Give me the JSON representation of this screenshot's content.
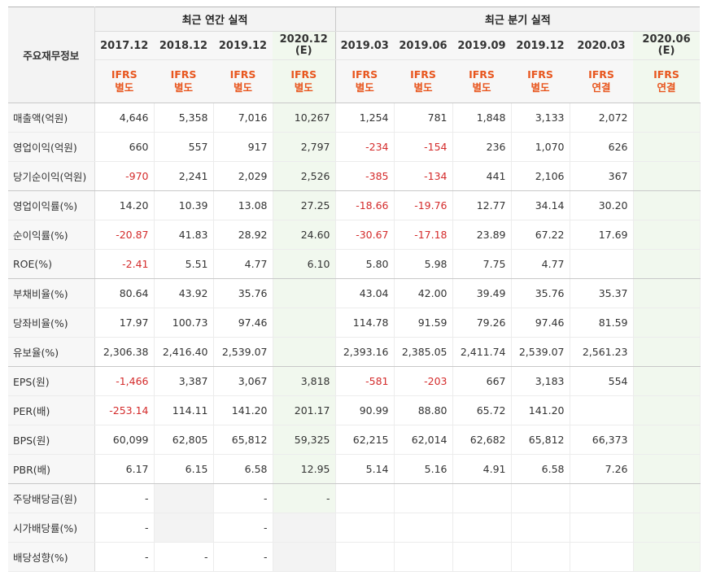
{
  "header": {
    "corner_label": "주요재무정보",
    "annual_group": "최근 연간 실적",
    "quarter_group": "최근 분기 실적"
  },
  "columns": [
    {
      "period": "2017.12",
      "estimate_mark": "",
      "basis_top": "IFRS",
      "basis_bottom": "별도",
      "estimate": false
    },
    {
      "period": "2018.12",
      "estimate_mark": "",
      "basis_top": "IFRS",
      "basis_bottom": "별도",
      "estimate": false
    },
    {
      "period": "2019.12",
      "estimate_mark": "",
      "basis_top": "IFRS",
      "basis_bottom": "별도",
      "estimate": false
    },
    {
      "period": "2020.12",
      "estimate_mark": "(E)",
      "basis_top": "IFRS",
      "basis_bottom": "별도",
      "estimate": true
    },
    {
      "period": "2019.03",
      "estimate_mark": "",
      "basis_top": "IFRS",
      "basis_bottom": "별도",
      "estimate": false
    },
    {
      "period": "2019.06",
      "estimate_mark": "",
      "basis_top": "IFRS",
      "basis_bottom": "별도",
      "estimate": false
    },
    {
      "period": "2019.09",
      "estimate_mark": "",
      "basis_top": "IFRS",
      "basis_bottom": "별도",
      "estimate": false
    },
    {
      "period": "2019.12",
      "estimate_mark": "",
      "basis_top": "IFRS",
      "basis_bottom": "별도",
      "estimate": false
    },
    {
      "period": "2020.03",
      "estimate_mark": "",
      "basis_top": "IFRS",
      "basis_bottom": "연결",
      "estimate": false
    },
    {
      "period": "2020.06",
      "estimate_mark": "(E)",
      "basis_top": "IFRS",
      "basis_bottom": "연결",
      "estimate": true
    }
  ],
  "rows": [
    {
      "label": "매출액(억원)",
      "values": [
        "4,646",
        "5,358",
        "7,016",
        "10,267",
        "1,254",
        "781",
        "1,848",
        "3,133",
        "2,072",
        ""
      ]
    },
    {
      "label": "영업이익(억원)",
      "values": [
        "660",
        "557",
        "917",
        "2,797",
        "-234",
        "-154",
        "236",
        "1,070",
        "626",
        ""
      ]
    },
    {
      "label": "당기순이익(억원)",
      "values": [
        "-970",
        "2,241",
        "2,029",
        "2,526",
        "-385",
        "-134",
        "441",
        "2,106",
        "367",
        ""
      ]
    },
    {
      "label": "영업이익률(%)",
      "values": [
        "14.20",
        "10.39",
        "13.08",
        "27.25",
        "-18.66",
        "-19.76",
        "12.77",
        "34.14",
        "30.20",
        ""
      ]
    },
    {
      "label": "순이익률(%)",
      "values": [
        "-20.87",
        "41.83",
        "28.92",
        "24.60",
        "-30.67",
        "-17.18",
        "23.89",
        "67.22",
        "17.69",
        ""
      ]
    },
    {
      "label": "ROE(%)",
      "values": [
        "-2.41",
        "5.51",
        "4.77",
        "6.10",
        "5.80",
        "5.98",
        "7.75",
        "4.77",
        "",
        ""
      ]
    },
    {
      "label": "부채비율(%)",
      "values": [
        "80.64",
        "43.92",
        "35.76",
        "",
        "43.04",
        "42.00",
        "39.49",
        "35.76",
        "35.37",
        ""
      ]
    },
    {
      "label": "당좌비율(%)",
      "values": [
        "17.97",
        "100.73",
        "97.46",
        "",
        "114.78",
        "91.59",
        "79.26",
        "97.46",
        "81.59",
        ""
      ]
    },
    {
      "label": "유보율(%)",
      "values": [
        "2,306.38",
        "2,416.40",
        "2,539.07",
        "",
        "2,393.16",
        "2,385.05",
        "2,411.74",
        "2,539.07",
        "2,561.23",
        ""
      ]
    },
    {
      "label": "EPS(원)",
      "values": [
        "-1,466",
        "3,387",
        "3,067",
        "3,818",
        "-581",
        "-203",
        "667",
        "3,183",
        "554",
        ""
      ]
    },
    {
      "label": "PER(배)",
      "values": [
        "-253.14",
        "114.11",
        "141.20",
        "201.17",
        "90.99",
        "88.80",
        "65.72",
        "141.20",
        "",
        ""
      ]
    },
    {
      "label": "BPS(원)",
      "values": [
        "60,099",
        "62,805",
        "65,812",
        "59,325",
        "62,215",
        "62,014",
        "62,682",
        "65,812",
        "66,373",
        ""
      ]
    },
    {
      "label": "PBR(배)",
      "values": [
        "6.17",
        "6.15",
        "6.58",
        "12.95",
        "5.14",
        "5.16",
        "4.91",
        "6.58",
        "7.26",
        ""
      ]
    },
    {
      "label": "주당배당금(원)",
      "values": [
        "-",
        "",
        "-",
        "-",
        "",
        "",
        "",
        "",
        "",
        ""
      ]
    },
    {
      "label": "시가배당률(%)",
      "values": [
        "-",
        "",
        "-",
        "",
        "",
        "",
        "",
        "",
        "",
        ""
      ]
    },
    {
      "label": "배당성향(%)",
      "values": [
        "-",
        "-",
        "-",
        "",
        "",
        "",
        "",
        "",
        "",
        ""
      ]
    }
  ],
  "colors": {
    "negative": "#d42b2b",
    "basis_label": "#e8561e",
    "estimate_bg": "#f1f8ee",
    "header_bg": "#f3f3f3"
  }
}
